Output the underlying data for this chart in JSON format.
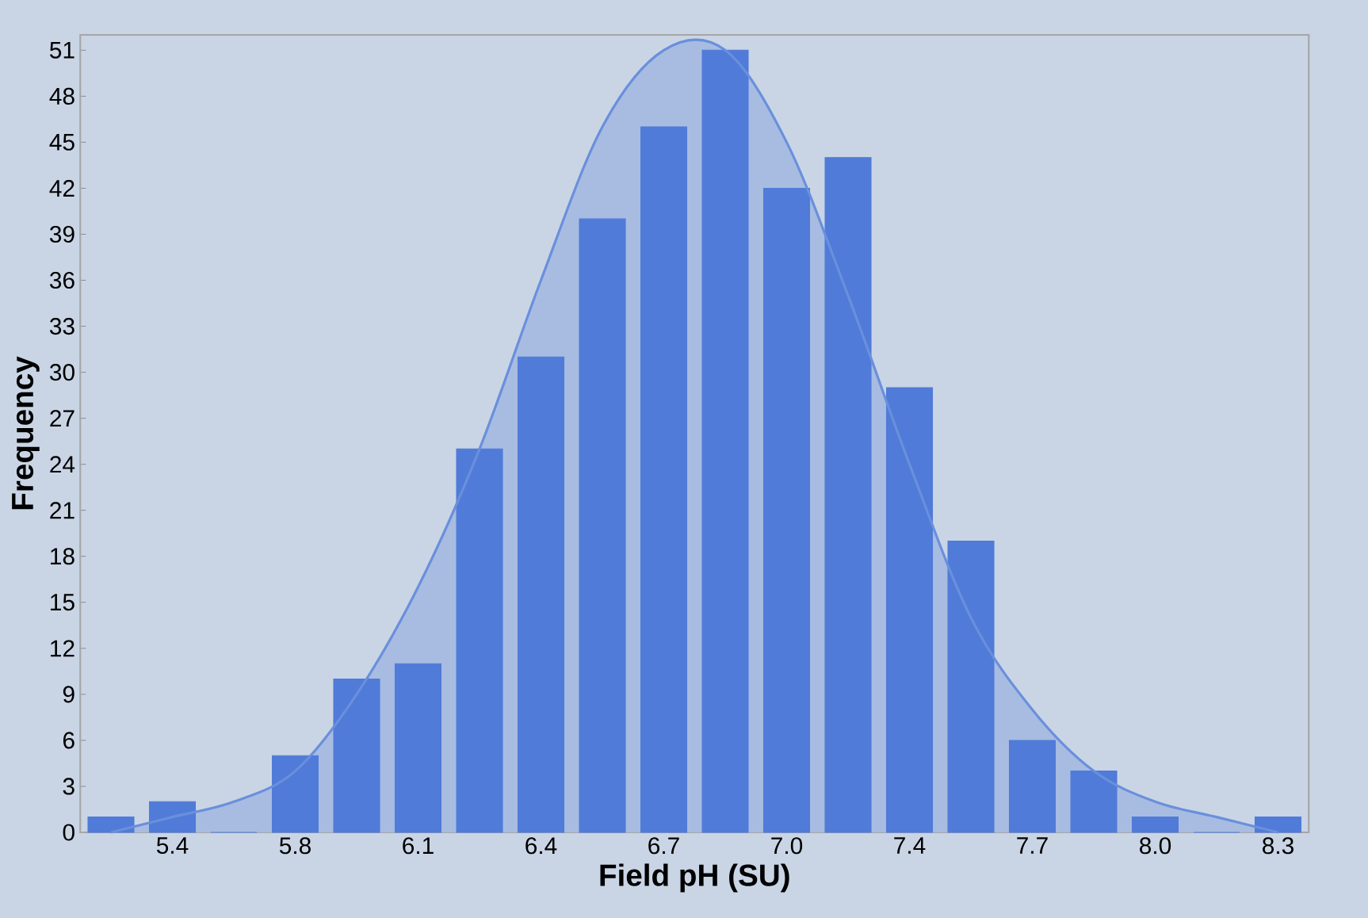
{
  "chart_data": {
    "type": "bar",
    "xlabel": "Field pH (SU)",
    "ylabel": "Frequency",
    "categories": [
      null,
      "5.4",
      null,
      "5.8",
      null,
      "6.1",
      null,
      "6.4",
      null,
      "6.7",
      null,
      "7.0",
      null,
      "7.4",
      null,
      "7.7",
      null,
      "8.0",
      null,
      "8.3"
    ],
    "series": [
      {
        "type": "area",
        "color": "#6a8fdc",
        "values": [
          0,
          1,
          2,
          4,
          9,
          16,
          25,
          36,
          46,
          51,
          51,
          45,
          35,
          24,
          14,
          8,
          4,
          2,
          1,
          0
        ]
      },
      {
        "color": "#507bd8",
        "values": [
          1,
          2,
          0,
          5,
          10,
          11,
          25,
          31,
          40,
          46,
          51,
          42,
          44,
          29,
          19,
          6,
          4,
          1,
          0,
          1
        ]
      }
    ],
    "ylim": [
      0,
      52
    ],
    "yticks": [
      0,
      3,
      6,
      9,
      12,
      15,
      18,
      21,
      24,
      27,
      30,
      33,
      36,
      39,
      42,
      45,
      48,
      51
    ],
    "grid": false
  }
}
